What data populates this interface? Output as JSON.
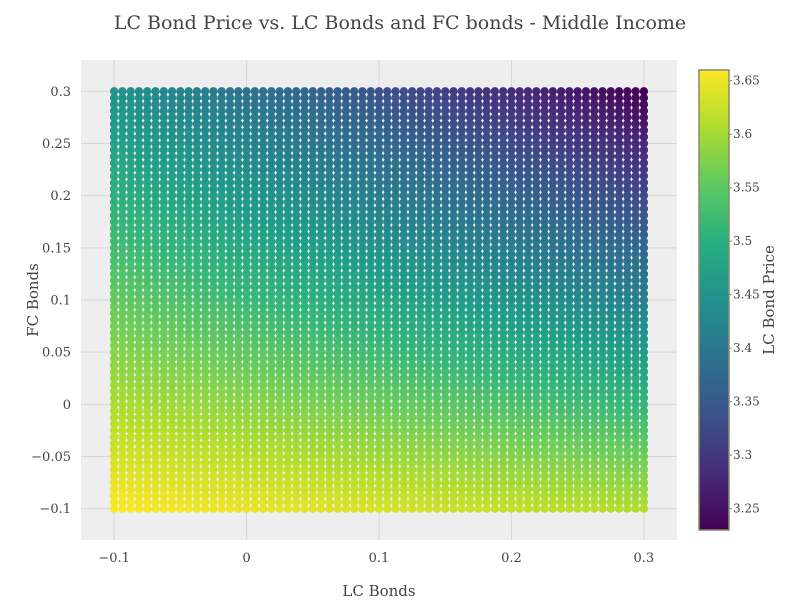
{
  "chart_data": {
    "type": "scatter",
    "title": "LC Bond Price vs. LC Bonds and FC bonds - Middle Income",
    "xlabel": "LC Bonds",
    "ylabel": "FC Bonds",
    "xlim": [
      -0.125,
      0.325
    ],
    "ylim": [
      -0.13,
      0.33
    ],
    "x_ticks": [
      -0.1,
      0,
      0.1,
      0.2,
      0.3
    ],
    "x_tick_labels": [
      "−0.1",
      "0",
      "0.1",
      "0.2",
      "0.3"
    ],
    "y_ticks": [
      -0.1,
      -0.05,
      0,
      0.05,
      0.1,
      0.15,
      0.2,
      0.25,
      0.3
    ],
    "y_tick_labels": [
      "−0.1",
      "−0.05",
      "0",
      "0.05",
      "0.1",
      "0.15",
      "0.2",
      "0.25",
      "0.3"
    ],
    "grid": {
      "x_min": -0.1,
      "x_max": 0.3,
      "x_steps": 64,
      "y_min": -0.1,
      "y_max": 0.3,
      "y_steps": 64
    },
    "price_corners": {
      "x_min_y_min": 3.66,
      "x_max_y_min": 3.61,
      "x_min_y_max": 3.45,
      "x_max_y_max": 3.23
    },
    "colorbar": {
      "label": "LC Bond Price",
      "range": [
        3.23,
        3.66
      ],
      "colormap": "viridis",
      "ticks": [
        3.25,
        3.3,
        3.35,
        3.4,
        3.45,
        3.5,
        3.55,
        3.6,
        3.65
      ],
      "tick_labels": [
        "3.25",
        "3.3",
        "3.35",
        "3.4",
        "3.45",
        "3.5",
        "3.55",
        "3.6",
        "3.65"
      ]
    },
    "gridlines": true,
    "plot_background": "#eeeeee"
  }
}
